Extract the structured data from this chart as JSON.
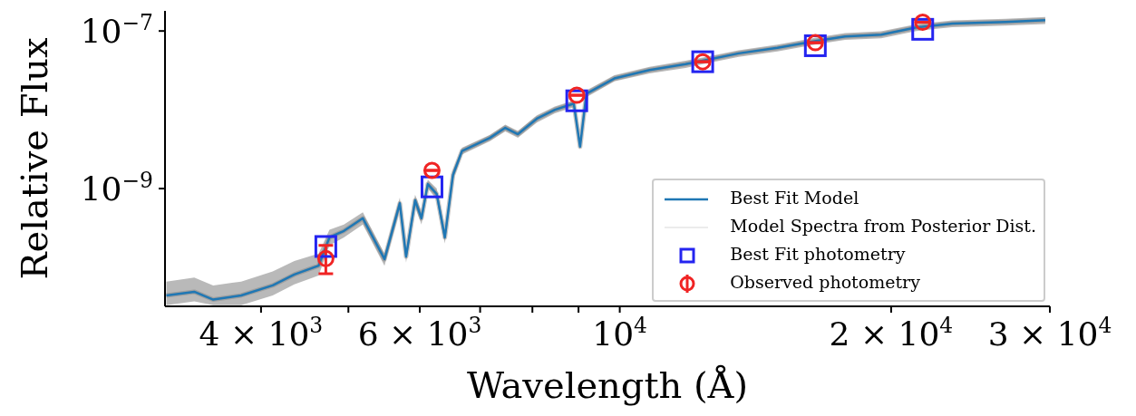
{
  "chart_data": {
    "type": "line",
    "xlabel": "Wavelength (Å)",
    "ylabel": "Relative Flux",
    "log": "xy",
    "legend": "bottom right",
    "xlim": [
      3130,
      30000
    ],
    "ylim": [
      3.2e-11,
      1.8e-07
    ],
    "xticks": [
      {
        "value": 4000,
        "label": "4 × 10$^{3}$"
      },
      {
        "value": 5000,
        "label": null
      },
      {
        "value": 6000,
        "label": "6 × 10$^{3}$"
      },
      {
        "value": 7000,
        "label": null
      },
      {
        "value": 8000,
        "label": null
      },
      {
        "value": 9000,
        "label": null
      },
      {
        "value": 10000,
        "label": "10$^{4}$"
      },
      {
        "value": 20000,
        "label": "2 × 10$^{4}$"
      },
      {
        "value": 30000,
        "label": "3 × 10$^{4}$"
      }
    ],
    "yticks": [
      {
        "value": 1e-09,
        "label": "10$^{−9}$"
      },
      {
        "value": 1e-07,
        "label": "10$^{−7}$"
      }
    ],
    "series": [
      {
        "name": "Best Fit Model",
        "color": "#1f77b4",
        "x": [
          3141,
          3373,
          3540,
          3802,
          4121,
          4355,
          4634,
          4764,
          4943,
          5188,
          5483,
          5702,
          5794,
          5929,
          6026,
          6124,
          6266,
          6397,
          6531,
          6683,
          7178,
          7464,
          7709,
          8091,
          8472,
          8892,
          9036,
          9183,
          9863,
          10790,
          11830,
          12360,
          13550,
          14960,
          16560,
          17780,
          19500,
          21330,
          23390,
          26790,
          29650
        ],
        "values": [
          4.4e-11,
          4.9e-11,
          3.9e-11,
          4.4e-11,
          5.9e-11,
          8.1e-11,
          1.05e-10,
          2.4e-10,
          2.9e-10,
          4.2e-10,
          1.27e-10,
          6.5e-10,
          1.37e-10,
          7.1e-10,
          4.2e-10,
          1.14e-09,
          8.5e-10,
          2.4e-10,
          1.49e-09,
          3e-09,
          4.4e-09,
          5.9e-09,
          4.9e-09,
          7.7e-09,
          1e-08,
          1.2e-08,
          3.4e-09,
          1.6e-08,
          2.5e-08,
          3.2e-08,
          3.8e-08,
          4.2e-08,
          5.2e-08,
          6.1e-08,
          7.5e-08,
          8.5e-08,
          9e-08,
          1.11e-07,
          1.24e-07,
          1.3e-07,
          1.37e-07
        ]
      },
      {
        "name": "Model Spectra from Posterior Dist.",
        "color": "#808080",
        "x": [
          3141,
          3373,
          3540,
          3802,
          4121,
          4355,
          4634,
          4764,
          4943,
          5188,
          5483,
          5702,
          5794,
          5929,
          6026,
          6124,
          6266,
          6397,
          6531,
          6683,
          7178,
          7464,
          7709,
          8091,
          8472,
          8892,
          9036,
          9183,
          9863,
          10790,
          11830,
          12360,
          13550,
          14960,
          16560,
          17780,
          19500,
          21330,
          23390,
          26790,
          29650
        ],
        "values": [
          4.4e-11,
          4.9e-11,
          3.9e-11,
          4.4e-11,
          5.9e-11,
          8.1e-11,
          1.05e-10,
          2.4e-10,
          2.9e-10,
          4.2e-10,
          1.27e-10,
          6.5e-10,
          1.37e-10,
          7.1e-10,
          4.2e-10,
          1.14e-09,
          8.5e-10,
          2.4e-10,
          1.49e-09,
          3e-09,
          4.4e-09,
          5.9e-09,
          4.9e-09,
          7.7e-09,
          1e-08,
          1.2e-08,
          3.4e-09,
          1.6e-08,
          2.5e-08,
          3.2e-08,
          3.8e-08,
          4.2e-08,
          5.2e-08,
          6.1e-08,
          7.5e-08,
          8.5e-08,
          9e-08,
          1.11e-07,
          1.24e-07,
          1.3e-07,
          1.37e-07
        ],
        "lower": [
          3.3e-11,
          3.7e-11,
          3.3e-11,
          3.3e-11,
          4.4e-11,
          6.1e-11,
          7.9e-11,
          1.9e-10,
          2.4e-10,
          3.5e-10,
          1.05e-10,
          5.5e-10,
          1.15e-10,
          6e-10,
          3.5e-10,
          1e-09,
          7.3e-10,
          2e-10,
          1.3e-09,
          2.7e-09,
          4e-09,
          5.3e-09,
          4.4e-09,
          6.9e-09,
          9e-09,
          1.08e-08,
          3.1e-09,
          1.44e-08,
          2.3e-08,
          2.9e-08,
          3.4e-08,
          3.8e-08,
          4.7e-08,
          5.5e-08,
          6.8e-08,
          7.7e-08,
          8.1e-08,
          1e-07,
          1.12e-07,
          1.17e-07,
          1.23e-07
        ],
        "upper": [
          6.6e-11,
          7.4e-11,
          5.9e-11,
          6.6e-11,
          8.9e-11,
          1.2e-10,
          1.5e-10,
          3e-10,
          3.5e-10,
          5e-10,
          1.5e-10,
          7.7e-10,
          1.6e-10,
          8.4e-10,
          5e-10,
          1.3e-09,
          1e-09,
          2.9e-10,
          1.7e-09,
          3.3e-09,
          4.8e-09,
          6.5e-09,
          5.4e-09,
          8.5e-09,
          1.1e-08,
          1.32e-08,
          3.7e-09,
          1.76e-08,
          2.75e-08,
          3.5e-08,
          4.2e-08,
          4.6e-08,
          5.7e-08,
          6.7e-08,
          8.3e-08,
          9.4e-08,
          9.9e-08,
          1.22e-07,
          1.36e-07,
          1.43e-07,
          1.51e-07
        ]
      },
      {
        "name": "Best Fit photometry",
        "type": "scatter",
        "marker": "square",
        "color": "#2424f0",
        "x": [
          4720,
          6190,
          8960,
          12360,
          16480,
          21680
        ],
        "values": [
          1.84e-10,
          1.05e-09,
          1.3e-08,
          4.07e-08,
          6.5e-08,
          1.05e-07
        ]
      },
      {
        "name": "Observed photometry",
        "type": "scatter",
        "marker": "circle",
        "color": "#f02424",
        "x": [
          4720,
          6190,
          8960,
          12360,
          16480,
          21680
        ],
        "values": [
          1.29e-10,
          1.7e-09,
          1.53e-08,
          4.07e-08,
          7.1e-08,
          1.29e-07
        ],
        "errors": [
          [
            8.3e-11,
            1.9e-10
          ],
          null,
          null,
          null,
          null,
          null
        ]
      }
    ]
  }
}
